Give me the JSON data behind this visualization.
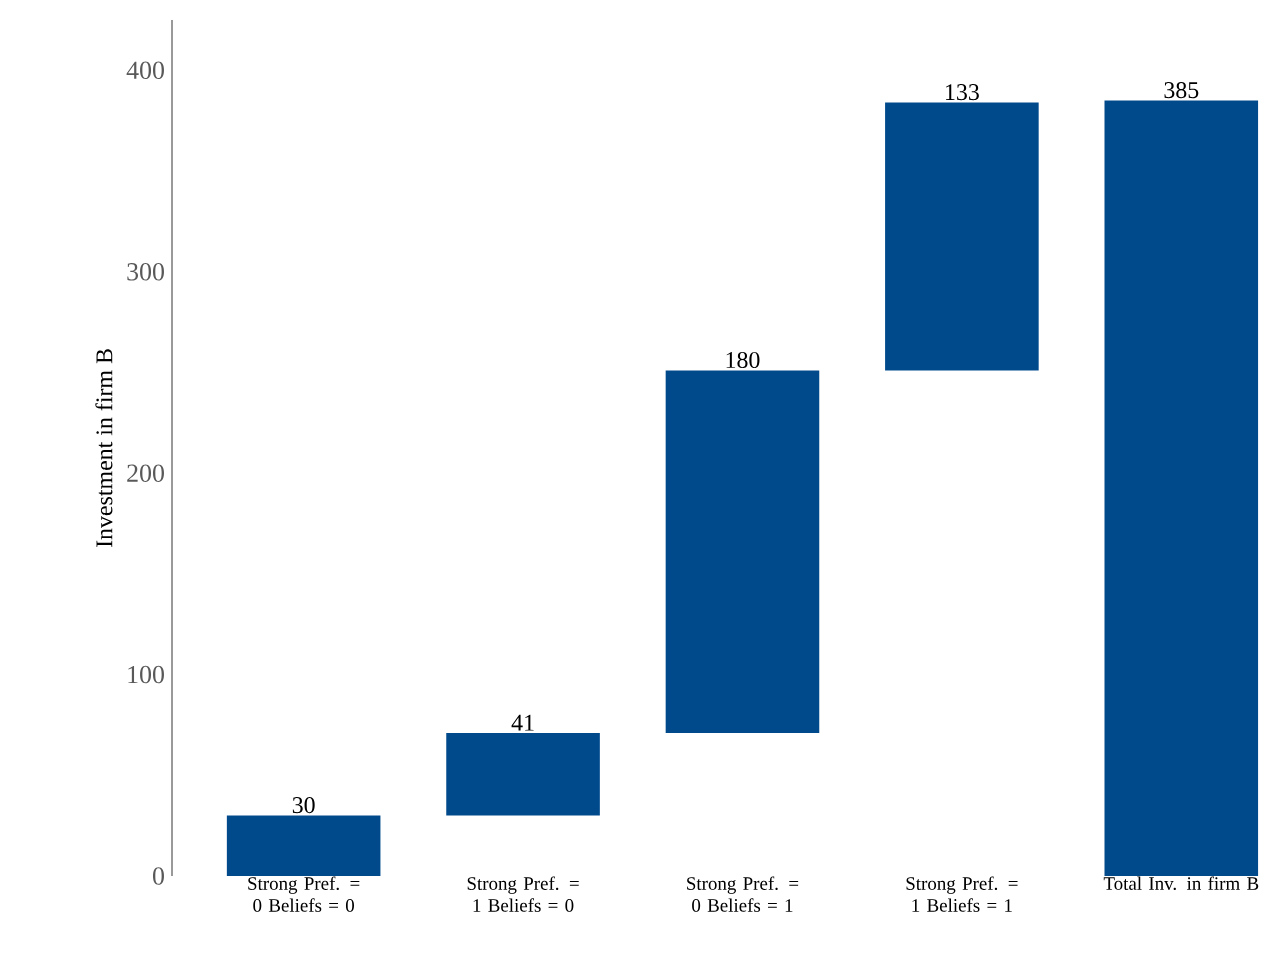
{
  "chart_data": {
    "type": "bar",
    "ylabel": "Investment in firm B",
    "categories": [
      "Strong Pref. = 0 Beliefs = 0",
      "Strong Pref. = 1 Beliefs = 0",
      "Strong Pref. = 0 Beliefs = 1",
      "Strong Pref. = 1 Beliefs = 1",
      "Total Inv. in firm B"
    ],
    "values": [
      30,
      41,
      180,
      133,
      385
    ],
    "base": [
      0,
      30,
      71,
      251,
      0
    ],
    "color": "#004a8c",
    "ylim": [
      0,
      425
    ],
    "yticks": [
      0,
      100,
      200,
      300,
      400
    ],
    "data_labels": true,
    "grid": false
  }
}
